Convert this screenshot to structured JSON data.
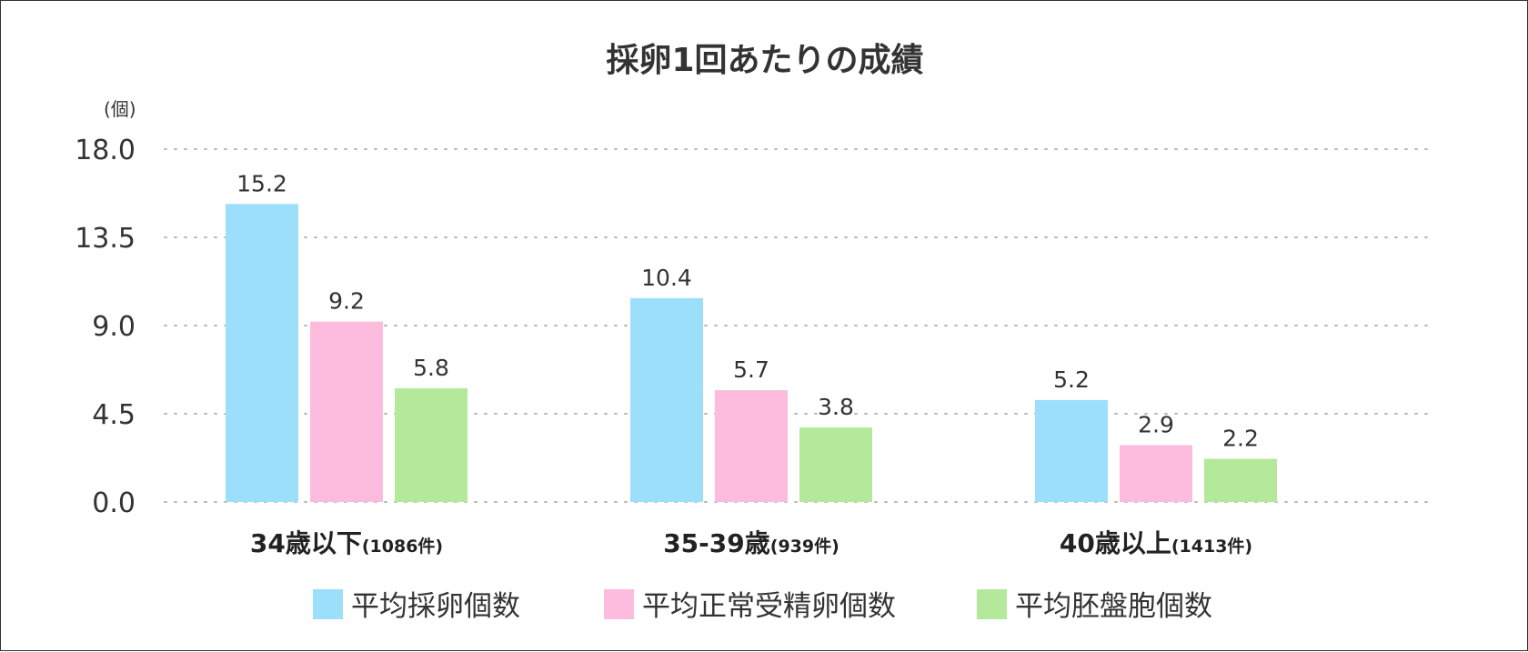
{
  "chart_data": {
    "type": "bar",
    "title": "採卵1回あたりの成績",
    "ylabel": "(個)",
    "xlabel": "",
    "ylim": [
      0,
      18
    ],
    "yticks": [
      "0.0",
      "4.5",
      "9.0",
      "13.5",
      "18.0"
    ],
    "grid": true,
    "legend_position": "bottom",
    "categories": [
      {
        "label": "34歳以下",
        "sub": "(1086件)"
      },
      {
        "label": "35-39歳",
        "sub": "(939件)"
      },
      {
        "label": "40歳以上",
        "sub": "(1413件)"
      }
    ],
    "series": [
      {
        "name": "平均採卵個数",
        "color": "#9bdffa",
        "values": [
          15.2,
          10.4,
          5.2
        ],
        "labels": [
          "15.2",
          "10.4",
          "5.2"
        ]
      },
      {
        "name": "平均正常受精卵個数",
        "color": "#fdbcdd",
        "values": [
          9.2,
          5.7,
          2.9
        ],
        "labels": [
          "9.2",
          "5.7",
          "2.9"
        ]
      },
      {
        "name": "平均胚盤胞個数",
        "color": "#b4e99b",
        "values": [
          5.8,
          3.8,
          2.2
        ],
        "labels": [
          "5.8",
          "3.8",
          "2.2"
        ]
      }
    ]
  }
}
